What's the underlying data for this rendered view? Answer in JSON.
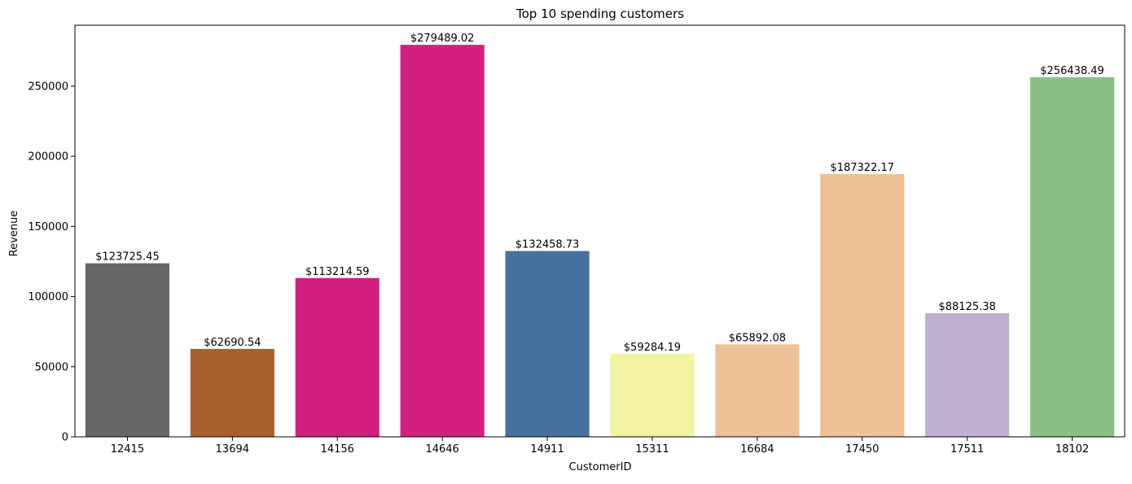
{
  "chart_data": {
    "type": "bar",
    "title": "Top 10 spending customers",
    "xlabel": "CustomerID",
    "ylabel": "Revenue",
    "categories": [
      "12415",
      "13694",
      "14156",
      "14646",
      "14911",
      "15311",
      "16684",
      "17450",
      "17511",
      "18102"
    ],
    "values": [
      123725.45,
      62690.54,
      113214.59,
      279489.02,
      132458.73,
      59284.19,
      65892.08,
      187322.17,
      88125.38,
      256438.49
    ],
    "data_labels": [
      "$123725.45",
      "$62690.54",
      "$113214.59",
      "$279489.02",
      "$132458.73",
      "$59284.19",
      "$65892.08",
      "$187322.17",
      "$88125.38",
      "$256438.49"
    ],
    "colors": [
      "#666666",
      "#a9602d",
      "#d3207e",
      "#d3207e",
      "#4670a0",
      "#f3f3a2",
      "#edc195",
      "#edc195",
      "#bfb1d0",
      "#8ac086"
    ],
    "yticks": [
      "0",
      "50000",
      "100000",
      "150000",
      "200000",
      "250000"
    ],
    "ylim": [
      0,
      293463
    ],
    "grid": false,
    "legend": "none"
  }
}
